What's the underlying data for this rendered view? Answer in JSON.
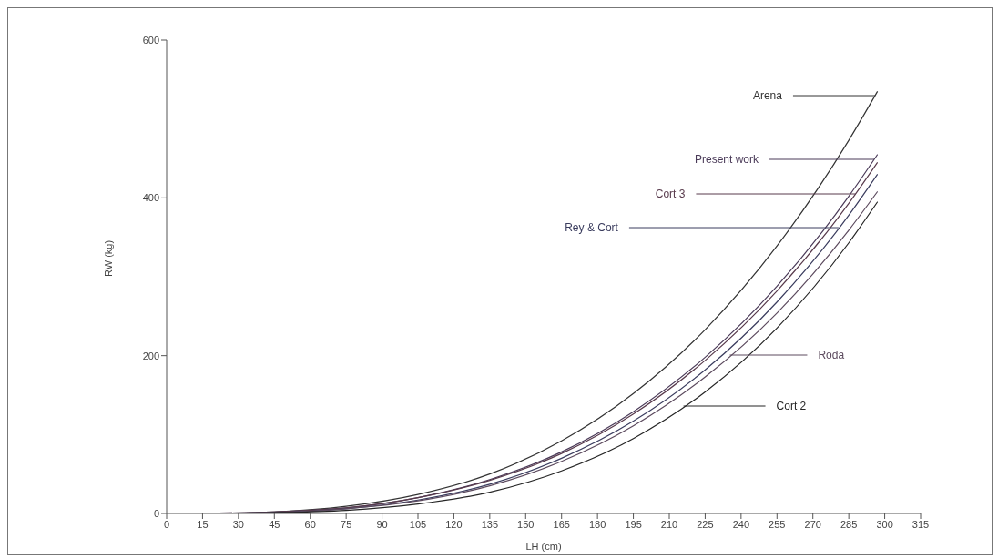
{
  "chart_data": {
    "type": "line",
    "xlabel": "LH (cm)",
    "ylabel": "RW (kg)",
    "x": [
      15,
      45,
      75,
      105,
      135,
      165,
      195,
      225,
      255,
      285,
      297
    ],
    "series": [
      {
        "name": "Arena",
        "color": "#333333",
        "values": [
          0,
          2,
          9,
          24,
          50,
          92,
          152,
          233,
          339,
          473,
          535
        ]
      },
      {
        "name": "Present work",
        "color": "#4a3a58",
        "values": [
          0,
          2,
          7,
          20,
          43,
          78,
          129,
          198,
          288,
          402,
          455
        ]
      },
      {
        "name": "Cort 3",
        "color": "#583a4c",
        "values": [
          0,
          2,
          7,
          20,
          42,
          76,
          126,
          194,
          282,
          393,
          445
        ]
      },
      {
        "name": "Rey & Cort",
        "color": "#3a3c5e",
        "values": [
          0,
          1,
          6,
          17,
          37,
          70,
          117,
          182,
          268,
          378,
          430
        ]
      },
      {
        "name": "Roda",
        "color": "#5c4a5e",
        "values": [
          0,
          1,
          6,
          16,
          35,
          66,
          111,
          173,
          254,
          359,
          408
        ]
      },
      {
        "name": "Cort 2",
        "color": "#252525",
        "values": [
          0,
          1,
          4,
          12,
          27,
          54,
          95,
          154,
          235,
          343,
          395
        ]
      }
    ],
    "xlim": [
      0,
      315
    ],
    "xticks": [
      0,
      15,
      30,
      45,
      60,
      75,
      90,
      105,
      120,
      135,
      150,
      165,
      180,
      195,
      210,
      225,
      240,
      255,
      270,
      285,
      300,
      315
    ],
    "ylim": [
      0,
      600
    ],
    "yticks": [
      0,
      200,
      400,
      600
    ],
    "grid": false,
    "legend": false,
    "marker": "none",
    "line_style": "solid"
  }
}
